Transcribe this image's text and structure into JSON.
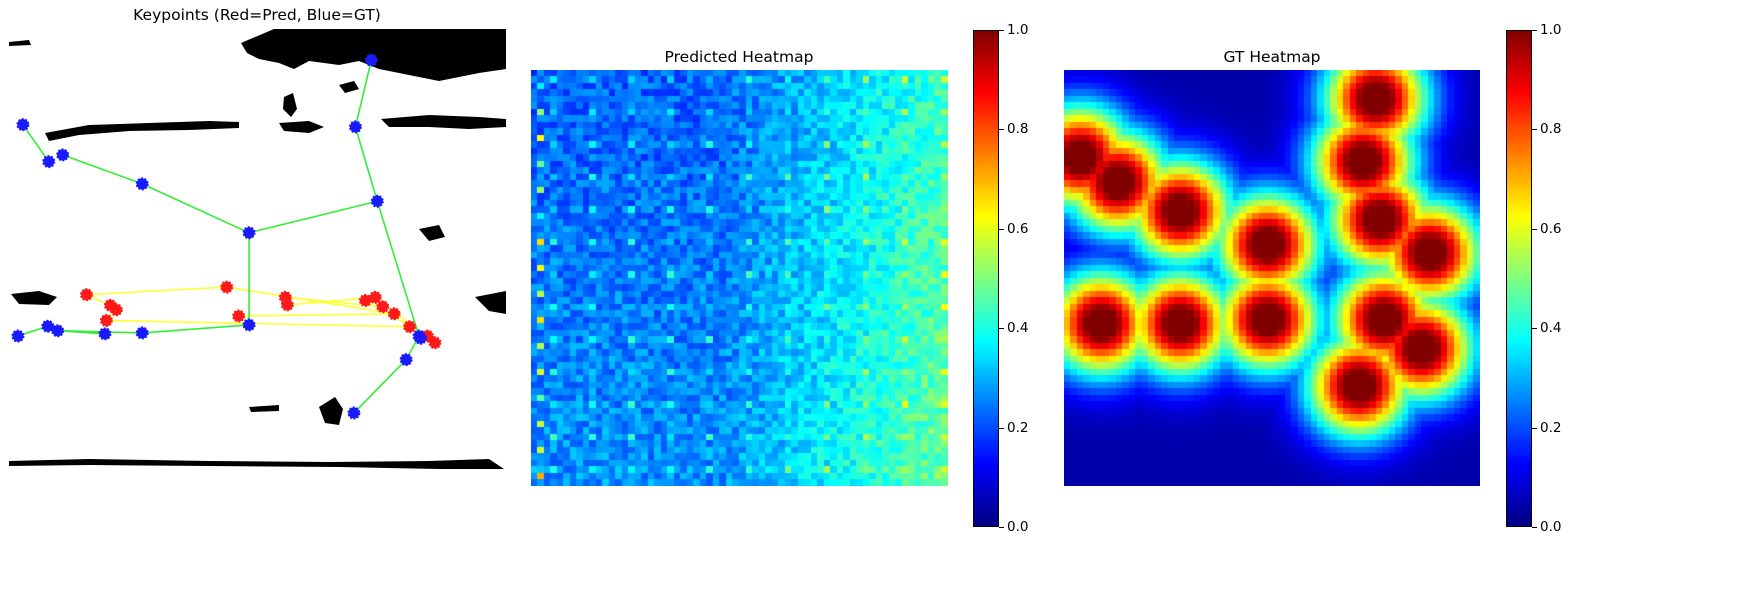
{
  "panels": {
    "keypoints_title": "Keypoints (Red=Pred, Blue=GT)",
    "predicted_title": "Predicted Heatmap",
    "gt_title": "GT Heatmap"
  },
  "colorbar": {
    "ticks": [
      "0.0",
      "0.2",
      "0.4",
      "0.6",
      "0.8",
      "1.0"
    ],
    "range": [
      0.0,
      1.0
    ],
    "colormap": "jet"
  },
  "colors": {
    "pred_points": "#ff1a1a",
    "gt_points": "#1a1aff",
    "pred_lines": "#ffff33",
    "gt_lines": "#33ee33"
  },
  "chart_data": [
    {
      "type": "scatter",
      "title": "Keypoints (Red=Pred, Blue=GT)",
      "axes": "off",
      "image_range": {
        "x": [
          0,
          1
        ],
        "y": [
          0,
          1
        ]
      },
      "series": [
        {
          "name": "Pred",
          "marker_color": "#ff1a1a",
          "line_color": "#ffff33",
          "points": [
            [
              0.156,
              0.597
            ],
            [
              0.204,
              0.621
            ],
            [
              0.216,
              0.631
            ],
            [
              0.196,
              0.655
            ],
            [
              0.438,
              0.58
            ],
            [
              0.556,
              0.603
            ],
            [
              0.56,
              0.62
            ],
            [
              0.462,
              0.645
            ],
            [
              0.717,
              0.61
            ],
            [
              0.737,
              0.603
            ],
            [
              0.752,
              0.624
            ],
            [
              0.775,
              0.64
            ],
            [
              0.806,
              0.669
            ],
            [
              0.842,
              0.69
            ],
            [
              0.857,
              0.705
            ]
          ],
          "edges": [
            [
              0,
              1
            ],
            [
              1,
              2
            ],
            [
              2,
              3
            ],
            [
              3,
              12
            ],
            [
              4,
              0
            ],
            [
              4,
              11
            ],
            [
              5,
              10
            ],
            [
              6,
              9
            ],
            [
              7,
              11
            ],
            [
              8,
              13
            ],
            [
              9,
              14
            ]
          ]
        },
        {
          "name": "GT",
          "marker_color": "#1a1aff",
          "line_color": "#33ee33",
          "points": [
            [
              0.028,
              0.215
            ],
            [
              0.08,
              0.298
            ],
            [
              0.108,
              0.283
            ],
            [
              0.268,
              0.348
            ],
            [
              0.483,
              0.458
            ],
            [
              0.741,
              0.387
            ],
            [
              0.697,
              0.22
            ],
            [
              0.729,
              0.07
            ],
            [
              0.483,
              0.665
            ],
            [
              0.825,
              0.69
            ],
            [
              0.799,
              0.743
            ],
            [
              0.694,
              0.863
            ],
            [
              0.018,
              0.69
            ],
            [
              0.078,
              0.668
            ],
            [
              0.098,
              0.678
            ],
            [
              0.268,
              0.683
            ],
            [
              0.193,
              0.685
            ],
            [
              0.828,
              0.695
            ]
          ],
          "edges": [
            [
              0,
              1
            ],
            [
              2,
              3
            ],
            [
              3,
              4
            ],
            [
              4,
              5
            ],
            [
              5,
              9
            ],
            [
              6,
              7
            ],
            [
              6,
              5
            ],
            [
              4,
              8
            ],
            [
              8,
              15
            ],
            [
              15,
              14
            ],
            [
              13,
              12
            ],
            [
              9,
              10
            ],
            [
              10,
              11
            ],
            [
              16,
              14
            ],
            [
              9,
              17
            ]
          ]
        }
      ]
    },
    {
      "type": "heatmap",
      "title": "Predicted Heatmap",
      "colormap": "jet",
      "vmin": 0.0,
      "vmax": 1.0,
      "description_values": {
        "left_region_mean": 0.25,
        "right_region_mean": 0.45
      }
    },
    {
      "type": "heatmap",
      "title": "GT Heatmap",
      "colormap": "jet",
      "vmin": 0.0,
      "vmax": 1.0,
      "peaks": [
        [
          0.04,
          0.21
        ],
        [
          0.13,
          0.27
        ],
        [
          0.28,
          0.34
        ],
        [
          0.49,
          0.42
        ],
        [
          0.75,
          0.07
        ],
        [
          0.72,
          0.22
        ],
        [
          0.76,
          0.36
        ],
        [
          0.88,
          0.44
        ],
        [
          0.09,
          0.61
        ],
        [
          0.28,
          0.61
        ],
        [
          0.49,
          0.6
        ],
        [
          0.77,
          0.6
        ],
        [
          0.86,
          0.67
        ],
        [
          0.71,
          0.76
        ]
      ]
    }
  ]
}
